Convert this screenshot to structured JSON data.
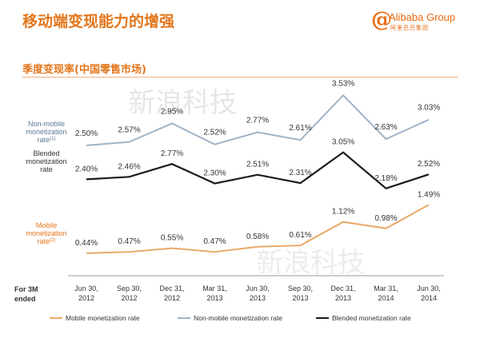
{
  "slide": {
    "title": "移动端变现能力的增强",
    "logo_text": "Alibaba Group",
    "logo_sub": "阿里巴巴集团",
    "watermark": "新浪科技"
  },
  "colors": {
    "title": "#e3761c",
    "mobile": "#e9a968",
    "non_mobile": "#9fb3c8",
    "blended": "#1b1b1b",
    "axis": "#9a9a9a"
  },
  "chart_data": {
    "type": "line",
    "title": "季度变现率(中国零售市场)",
    "period_label": "For 3M ended",
    "categories": [
      "Jun 30, 2012",
      "Sep 30, 2012",
      "Dec 31, 2012",
      "Mar 31, 2013",
      "Jun 30, 2013",
      "Sep 30, 2013",
      "Dec 31, 2013",
      "Mar 31, 2014",
      "Jun 30, 2014"
    ],
    "value_format": "percent",
    "series": [
      {
        "key": "non_mobile",
        "name": "Non-mobile monetization rate",
        "side_label": "Non-mobile monetization rate",
        "footnote": "(1)",
        "values": [
          2.5,
          2.57,
          2.95,
          2.52,
          2.77,
          2.61,
          3.53,
          2.63,
          3.03
        ]
      },
      {
        "key": "blended",
        "name": "Blended monetization rate",
        "side_label": "Blended monetization rate",
        "footnote": "",
        "values": [
          2.4,
          2.46,
          2.77,
          2.3,
          2.51,
          2.31,
          3.05,
          2.18,
          2.52
        ]
      },
      {
        "key": "mobile",
        "name": "Mobile monetization rate",
        "side_label": "Mobile monetization rate",
        "footnote": "(2)",
        "values": [
          0.44,
          0.47,
          0.55,
          0.47,
          0.58,
          0.61,
          1.12,
          0.98,
          1.49
        ]
      }
    ],
    "legend": {
      "placement": "bottom",
      "order": [
        "mobile",
        "non_mobile",
        "blended"
      ]
    },
    "axes": {
      "y_visible": false,
      "grid": false
    }
  }
}
